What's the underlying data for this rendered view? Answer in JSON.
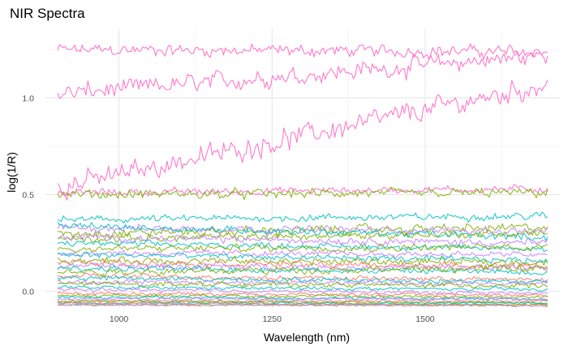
{
  "chart_data": {
    "type": "line",
    "title": "NIR Spectra",
    "xlabel": "Wavelength (nm)",
    "ylabel": "log(1/R)",
    "xlim": [
      880,
      1720
    ],
    "ylim": [
      -0.09,
      1.36
    ],
    "x_ticks": [
      1000,
      1250,
      1500
    ],
    "y_ticks": [
      0.0,
      0.5,
      1.0
    ],
    "x_tick_labels": [
      "1000",
      "1250",
      "1500"
    ],
    "y_tick_labels": [
      "0.0",
      "0.5",
      "1.0"
    ],
    "x_minor_ticks": [
      1125,
      1375,
      1625
    ],
    "y_minor_ticks": [
      0.25,
      0.75,
      1.25
    ],
    "grid": true,
    "legend": "none",
    "wavelength_range": [
      900,
      1700
    ],
    "series": [
      {
        "color": "#FF61C3",
        "start": 1.25,
        "end": 1.24,
        "noise": 0.02
      },
      {
        "color": "#FF61C3",
        "start": 1.02,
        "end": 1.22,
        "noise": 0.03
      },
      {
        "color": "#FF61C3",
        "start": 0.54,
        "end": 1.07,
        "noise": 0.035
      },
      {
        "color": "#FF61C3",
        "start": 0.51,
        "end": 0.53,
        "noise": 0.012
      },
      {
        "color": "#7CAE00",
        "start": 0.5,
        "end": 0.51,
        "noise": 0.015
      },
      {
        "color": "#00BFC4",
        "start": 0.37,
        "end": 0.39,
        "noise": 0.012
      },
      {
        "color": "#7CAE00",
        "start": 0.3,
        "end": 0.33,
        "noise": 0.015
      },
      {
        "color": "#C77CFF",
        "start": 0.33,
        "end": 0.31,
        "noise": 0.012
      },
      {
        "color": "#00BFC4",
        "start": 0.34,
        "end": 0.28,
        "noise": 0.012
      },
      {
        "color": "#7CAE00",
        "start": 0.27,
        "end": 0.3,
        "noise": 0.012
      },
      {
        "color": "#C77CFF",
        "start": 0.28,
        "end": 0.25,
        "noise": 0.012
      },
      {
        "color": "#00BFC4",
        "start": 0.25,
        "end": 0.22,
        "noise": 0.01
      },
      {
        "color": "#7CAE00",
        "start": 0.22,
        "end": 0.23,
        "noise": 0.012
      },
      {
        "color": "#C77CFF",
        "start": 0.2,
        "end": 0.19,
        "noise": 0.01
      },
      {
        "color": "#00BFC4",
        "start": 0.19,
        "end": 0.16,
        "noise": 0.01
      },
      {
        "color": "#7CAE00",
        "start": 0.16,
        "end": 0.15,
        "noise": 0.012
      },
      {
        "color": "#F8766D",
        "start": 0.15,
        "end": 0.13,
        "noise": 0.01
      },
      {
        "color": "#C77CFF",
        "start": 0.13,
        "end": 0.12,
        "noise": 0.01
      },
      {
        "color": "#00BFC4",
        "start": 0.12,
        "end": 0.1,
        "noise": 0.01
      },
      {
        "color": "#7CAE00",
        "start": 0.1,
        "end": 0.12,
        "noise": 0.012
      },
      {
        "color": "#F8766D",
        "start": 0.08,
        "end": 0.06,
        "noise": 0.008
      },
      {
        "color": "#00BFC4",
        "start": 0.07,
        "end": 0.05,
        "noise": 0.008
      },
      {
        "color": "#C77CFF",
        "start": 0.05,
        "end": 0.04,
        "noise": 0.008
      },
      {
        "color": "#7CAE00",
        "start": 0.04,
        "end": 0.03,
        "noise": 0.008
      },
      {
        "color": "#00BFC4",
        "start": 0.02,
        "end": 0.01,
        "noise": 0.006
      },
      {
        "color": "#C77CFF",
        "start": 0.01,
        "end": -0.01,
        "noise": 0.006
      },
      {
        "color": "#F8766D",
        "start": -0.01,
        "end": -0.02,
        "noise": 0.005
      },
      {
        "color": "#7CAE00",
        "start": -0.02,
        "end": -0.03,
        "noise": 0.005
      },
      {
        "color": "#00BFC4",
        "start": -0.03,
        "end": -0.04,
        "noise": 0.005
      },
      {
        "color": "#C77CFF",
        "start": -0.04,
        "end": -0.04,
        "noise": 0.004
      },
      {
        "color": "#F8766D",
        "start": -0.05,
        "end": -0.05,
        "noise": 0.004
      },
      {
        "color": "#7CAE00",
        "start": -0.05,
        "end": -0.06,
        "noise": 0.004
      },
      {
        "color": "#00BFC4",
        "start": -0.06,
        "end": -0.06,
        "noise": 0.004
      },
      {
        "color": "#F8766D",
        "start": -0.06,
        "end": -0.07,
        "noise": 0.003
      },
      {
        "color": "#7CAE00",
        "start": -0.07,
        "end": -0.07,
        "noise": 0.003
      },
      {
        "color": "#C77CFF",
        "start": -0.07,
        "end": -0.075,
        "noise": 0.003
      }
    ]
  }
}
